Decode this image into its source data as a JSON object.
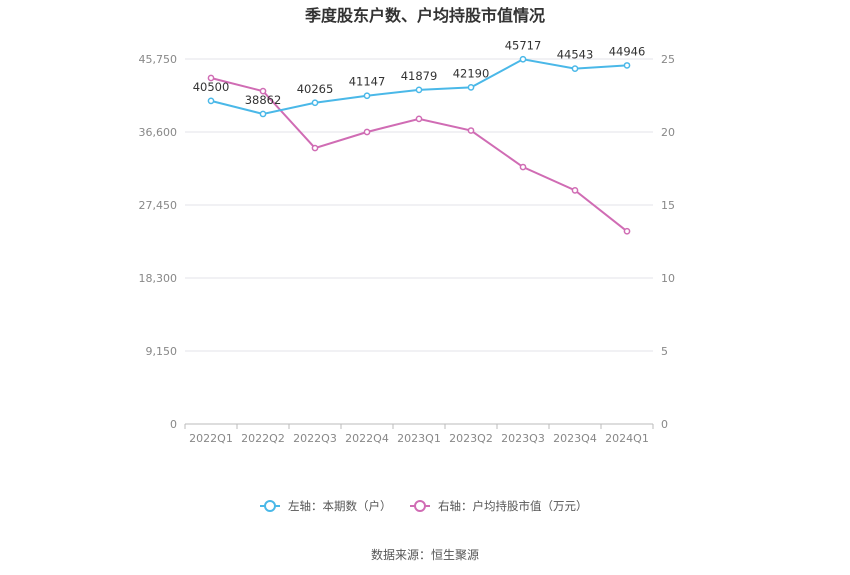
{
  "chart_data": {
    "type": "line",
    "title": "季度股东户数、户均持股市值情况",
    "categories": [
      "2022Q1",
      "2022Q2",
      "2022Q3",
      "2022Q4",
      "2023Q1",
      "2023Q2",
      "2023Q3",
      "2023Q4",
      "2024Q1"
    ],
    "left_axis": {
      "ticks": [
        "0",
        "9,150",
        "18,300",
        "27,450",
        "36,600",
        "45,750"
      ],
      "ylim": [
        0,
        45750
      ]
    },
    "right_axis": {
      "ticks": [
        "0",
        "5",
        "10",
        "15",
        "20",
        "25"
      ],
      "ylim": [
        0,
        25
      ]
    },
    "series": [
      {
        "name": "左轴：本期数（户）",
        "axis": "left",
        "color": "#4ab8e8",
        "values": [
          40500,
          38862,
          40265,
          41147,
          41879,
          42190,
          45717,
          44543,
          44946
        ],
        "labels": [
          "40500",
          "38862",
          "40265",
          "41147",
          "41879",
          "42190",
          "45717",
          "44543",
          "44946"
        ]
      },
      {
        "name": "右轴：户均持股市值（万元）",
        "axis": "right",
        "color": "#d06cb4",
        "values": [
          23.7,
          22.8,
          18.9,
          20.0,
          20.9,
          20.1,
          17.6,
          16.0,
          13.2
        ]
      }
    ],
    "grid": true,
    "legend_position": "bottom"
  },
  "footer": {
    "source": "数据来源：恒生聚源"
  }
}
